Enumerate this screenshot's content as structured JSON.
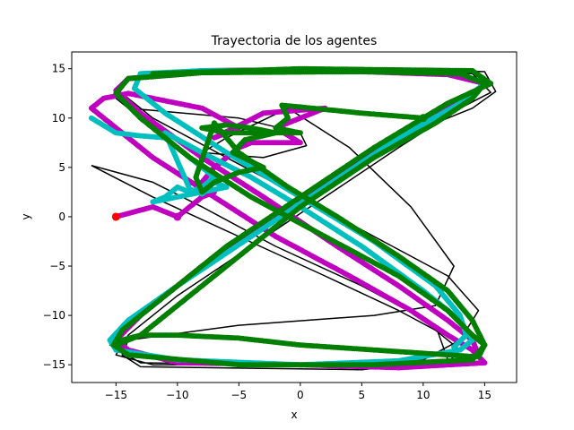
{
  "chart_data": {
    "type": "scatter",
    "title": "Trayectoria de los agentes",
    "xlabel": "x",
    "ylabel": "y",
    "xlim": [
      -18.6,
      17.6
    ],
    "ylim": [
      -16.8,
      16.7
    ],
    "x_ticks": [
      "−15",
      "−10",
      "−5",
      "0",
      "5",
      "10",
      "15"
    ],
    "x_tick_values": [
      -15,
      -10,
      -5,
      0,
      5,
      10,
      15
    ],
    "y_ticks": [
      "−15",
      "−10",
      "−5",
      "0",
      "5",
      "10",
      "15"
    ],
    "y_tick_values": [
      -15,
      -10,
      -5,
      0,
      5,
      10,
      15
    ],
    "grid": false,
    "colors": {
      "black": "#000000",
      "magenta": "#bf00bf",
      "cyan": "#00bfbf",
      "green": "#007f00",
      "red": "#ff0000"
    },
    "series": [
      {
        "color": "black",
        "mode": "line",
        "points": [
          [
            -17,
            5.2
          ],
          [
            -12,
            2
          ],
          [
            -5,
            -2
          ],
          [
            2,
            -6
          ],
          [
            8,
            -9.5
          ],
          [
            11,
            -11.5
          ],
          [
            13,
            -13.5
          ],
          [
            12,
            -14.8
          ],
          [
            0,
            -15
          ],
          [
            -12,
            -15
          ],
          [
            -15,
            -14
          ],
          [
            -14,
            -12
          ],
          [
            -10,
            -8
          ],
          [
            -4,
            -3
          ],
          [
            2,
            2
          ],
          [
            8,
            7
          ],
          [
            13,
            11
          ],
          [
            15.5,
            12.6
          ],
          [
            14,
            14.5
          ],
          [
            5,
            15
          ],
          [
            -7,
            15
          ],
          [
            -14,
            14.2
          ],
          [
            -15,
            13
          ],
          [
            -12,
            10
          ],
          [
            -6,
            6
          ],
          [
            0,
            2
          ],
          [
            6,
            -2
          ],
          [
            12,
            -6
          ],
          [
            14.5,
            -9.5
          ],
          [
            13,
            -12.5
          ],
          [
            10,
            -14.5
          ],
          [
            0,
            -15
          ],
          [
            -13,
            -14.8
          ],
          [
            -15.5,
            -13
          ],
          [
            -14,
            -11
          ],
          [
            -9,
            -6
          ],
          [
            -3,
            -1
          ],
          [
            3,
            4
          ],
          [
            9,
            8.5
          ],
          [
            14,
            11
          ],
          [
            15.9,
            12.7
          ],
          [
            15,
            14.7
          ],
          [
            5,
            15.1
          ],
          [
            -8,
            15
          ],
          [
            -14,
            14
          ],
          [
            -15,
            12
          ],
          [
            -14,
            11
          ],
          [
            -5,
            10
          ],
          [
            0,
            8.5
          ],
          [
            0.5,
            7.2
          ],
          [
            -3,
            6
          ],
          [
            -8,
            6.5
          ],
          [
            -6,
            8
          ],
          [
            -1,
            11
          ],
          [
            4,
            7
          ],
          [
            9,
            1
          ],
          [
            12.5,
            -5
          ],
          [
            11,
            -9
          ],
          [
            6,
            -10
          ],
          [
            -5,
            -11
          ],
          [
            -14,
            -12.5
          ],
          [
            -14.5,
            -14
          ],
          [
            -13,
            -15.2
          ],
          [
            5,
            -15.5
          ],
          [
            12,
            -14.5
          ],
          [
            11,
            -11
          ],
          [
            5,
            -7
          ],
          [
            -2,
            -3
          ],
          [
            -8,
            1
          ],
          [
            -12,
            3.5
          ],
          [
            -17,
            5.2
          ]
        ]
      },
      {
        "color": "magenta",
        "mode": "markers",
        "points": [
          [
            -15,
            0
          ],
          [
            -12,
            1
          ],
          [
            -10,
            0
          ],
          [
            -9,
            1
          ],
          [
            -8,
            2
          ],
          [
            -7,
            2.5
          ],
          [
            -8,
            3.5
          ],
          [
            -7,
            5
          ],
          [
            -6,
            6
          ],
          [
            -5,
            7
          ],
          [
            -4,
            7.5
          ],
          [
            -2,
            7.5
          ],
          [
            0,
            7.5
          ],
          [
            -2,
            9
          ],
          [
            0,
            10
          ],
          [
            2,
            11
          ],
          [
            -3,
            10.5
          ],
          [
            -7,
            8
          ],
          [
            -5,
            9
          ],
          [
            -8,
            11
          ],
          [
            -14,
            12.5
          ],
          [
            -16,
            12
          ],
          [
            -17,
            11
          ],
          [
            -15,
            9
          ],
          [
            -12,
            6
          ],
          [
            -7,
            2
          ],
          [
            -2,
            -2
          ],
          [
            4,
            -6
          ],
          [
            9,
            -9.5
          ],
          [
            12,
            -12
          ],
          [
            14,
            -13.5
          ],
          [
            15,
            -14.8
          ],
          [
            8,
            -15.3
          ],
          [
            0,
            -15
          ],
          [
            -10,
            -14.8
          ],
          [
            -14,
            -13.5
          ],
          [
            -15,
            -12.5
          ],
          [
            -13,
            -10
          ],
          [
            -8,
            -5
          ],
          [
            -2,
            0
          ],
          [
            4,
            5
          ],
          [
            9,
            9
          ],
          [
            13.5,
            12
          ],
          [
            15,
            13.5
          ],
          [
            12,
            14.4
          ],
          [
            3,
            14.8
          ],
          [
            -8,
            14.6
          ],
          [
            -14,
            14
          ],
          [
            -15,
            12.8
          ],
          [
            -13,
            10.5
          ],
          [
            -8,
            6
          ],
          [
            -3,
            2
          ],
          [
            3,
            -3
          ],
          [
            8,
            -7
          ],
          [
            12,
            -10.5
          ],
          [
            14,
            -12.5
          ],
          [
            14.5,
            -14
          ]
        ]
      },
      {
        "color": "cyan",
        "mode": "markers",
        "points": [
          [
            -17,
            10
          ],
          [
            -15,
            8.5
          ],
          [
            -13,
            8.2
          ],
          [
            -11,
            8
          ],
          [
            -9,
            6
          ],
          [
            -8,
            5
          ],
          [
            -7,
            4
          ],
          [
            -8,
            3
          ],
          [
            -9,
            2.5
          ],
          [
            -10,
            3
          ],
          [
            -11,
            2
          ],
          [
            -12,
            1.5
          ],
          [
            -6,
            3
          ],
          [
            -7,
            3.5
          ],
          [
            -8,
            2.3
          ],
          [
            -9,
            2.8
          ],
          [
            -11,
            8.5
          ],
          [
            -8,
            6.5
          ],
          [
            -4,
            4
          ],
          [
            0,
            1
          ],
          [
            5,
            -3
          ],
          [
            10,
            -7.5
          ],
          [
            13,
            -10.5
          ],
          [
            14,
            -12.5
          ],
          [
            13,
            -13.5
          ],
          [
            8,
            -14.6
          ],
          [
            0,
            -15
          ],
          [
            -10,
            -14.5
          ],
          [
            -15,
            -13.5
          ],
          [
            -15.5,
            -12.5
          ],
          [
            -14,
            -10.5
          ],
          [
            -10,
            -7
          ],
          [
            -4,
            -2
          ],
          [
            2,
            3
          ],
          [
            8,
            8
          ],
          [
            13,
            11.5
          ],
          [
            15,
            13.5
          ],
          [
            13,
            14.5
          ],
          [
            5,
            14.8
          ],
          [
            -8,
            14.8
          ],
          [
            -13,
            14.5
          ],
          [
            -13.5,
            13
          ],
          [
            -11,
            10.5
          ],
          [
            -6,
            6.5
          ],
          [
            0,
            2
          ],
          [
            6,
            -2.5
          ],
          [
            11,
            -7
          ],
          [
            13,
            -10
          ],
          [
            13.5,
            -12
          ],
          [
            12.5,
            -13.2
          ]
        ]
      },
      {
        "color": "green",
        "mode": "markers",
        "points": [
          [
            10,
            10
          ],
          [
            5,
            10.5
          ],
          [
            1,
            11
          ],
          [
            -1.5,
            11.3
          ],
          [
            -1,
            10
          ],
          [
            -2,
            9
          ],
          [
            0,
            8.5
          ],
          [
            -3,
            8.5
          ],
          [
            -6,
            8.5
          ],
          [
            -8,
            9
          ],
          [
            -6,
            9.3
          ],
          [
            -4,
            9
          ],
          [
            -2,
            8.5
          ],
          [
            -4.5,
            7.8
          ],
          [
            -5.5,
            6.5
          ],
          [
            -3,
            5
          ],
          [
            -5,
            4.5
          ],
          [
            -7,
            3.5
          ],
          [
            -8,
            2.5
          ],
          [
            -8.5,
            4
          ],
          [
            -7,
            9.5
          ],
          [
            -5,
            6.5
          ],
          [
            -1,
            3
          ],
          [
            3,
            0
          ],
          [
            8,
            -4
          ],
          [
            12,
            -7.5
          ],
          [
            14,
            -10.5
          ],
          [
            15,
            -13
          ],
          [
            14.5,
            -14.2
          ],
          [
            12,
            -14
          ],
          [
            6,
            -13.5
          ],
          [
            0,
            -13
          ],
          [
            -5,
            -12.3
          ],
          [
            -10,
            -12
          ],
          [
            -13,
            -12
          ],
          [
            -14.5,
            -12.5
          ],
          [
            -15,
            -13
          ],
          [
            -13,
            -12
          ],
          [
            -10,
            -9
          ],
          [
            -5,
            -4
          ],
          [
            0,
            1
          ],
          [
            6,
            6
          ],
          [
            11,
            9.5
          ],
          [
            14,
            12
          ],
          [
            15,
            13.5
          ],
          [
            13,
            14.5
          ],
          [
            5,
            14.7
          ],
          [
            -8,
            14.6
          ],
          [
            -14,
            14
          ],
          [
            -15,
            12.5
          ],
          [
            -13,
            10
          ],
          [
            -9,
            6
          ],
          [
            -4,
            2
          ],
          [
            2,
            -2
          ],
          [
            8,
            -6
          ],
          [
            12,
            -9.5
          ],
          [
            14,
            -12
          ],
          [
            15,
            -13
          ],
          [
            14,
            -14.5
          ],
          [
            6,
            -15
          ],
          [
            -5,
            -15
          ],
          [
            -14,
            -14
          ],
          [
            -15.2,
            -13
          ],
          [
            -14.5,
            -11.5
          ],
          [
            -11,
            -8
          ],
          [
            -6,
            -3
          ],
          [
            0,
            2
          ],
          [
            6,
            7
          ],
          [
            12,
            11.5
          ],
          [
            15.5,
            13.5
          ],
          [
            14,
            14.8
          ],
          [
            0,
            15
          ],
          [
            -12,
            14.5
          ]
        ]
      },
      {
        "color": "red",
        "mode": "markers",
        "points": [
          [
            -15,
            0
          ]
        ]
      }
    ],
    "endpoint_markers": [
      {
        "color": "red",
        "point": [
          -15,
          0
        ]
      },
      {
        "color": "magenta",
        "point": [
          -10,
          0
        ]
      },
      {
        "color": "green",
        "point": [
          10,
          10
        ]
      }
    ]
  }
}
